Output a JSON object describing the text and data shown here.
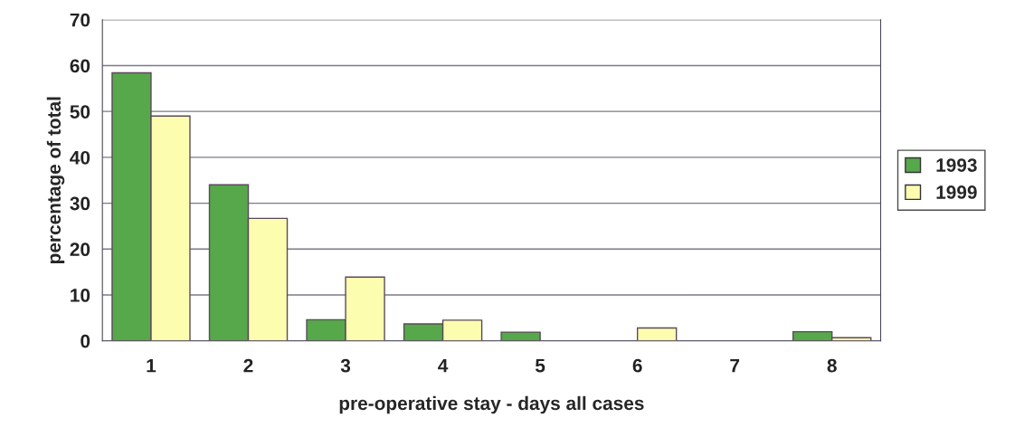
{
  "chart_data": {
    "type": "bar",
    "xlabel": "pre-operative stay - days all cases",
    "ylabel": "percentage of total",
    "categories": [
      "1",
      "2",
      "3",
      "4",
      "5",
      "6",
      "7",
      "8"
    ],
    "series": [
      {
        "name": "1993",
        "color": "#56a84a",
        "values": [
          58.4,
          34,
          4.6,
          3.7,
          1.9,
          0,
          0,
          2
        ]
      },
      {
        "name": "1999",
        "color": "#fdfdb0",
        "values": [
          49,
          26.7,
          13.9,
          4.5,
          0,
          2.8,
          0,
          0.7
        ]
      }
    ],
    "ylim": [
      0,
      70
    ],
    "yticks": [
      0,
      10,
      20,
      30,
      40,
      50,
      60,
      70
    ],
    "grid": "y",
    "legend": "right"
  }
}
